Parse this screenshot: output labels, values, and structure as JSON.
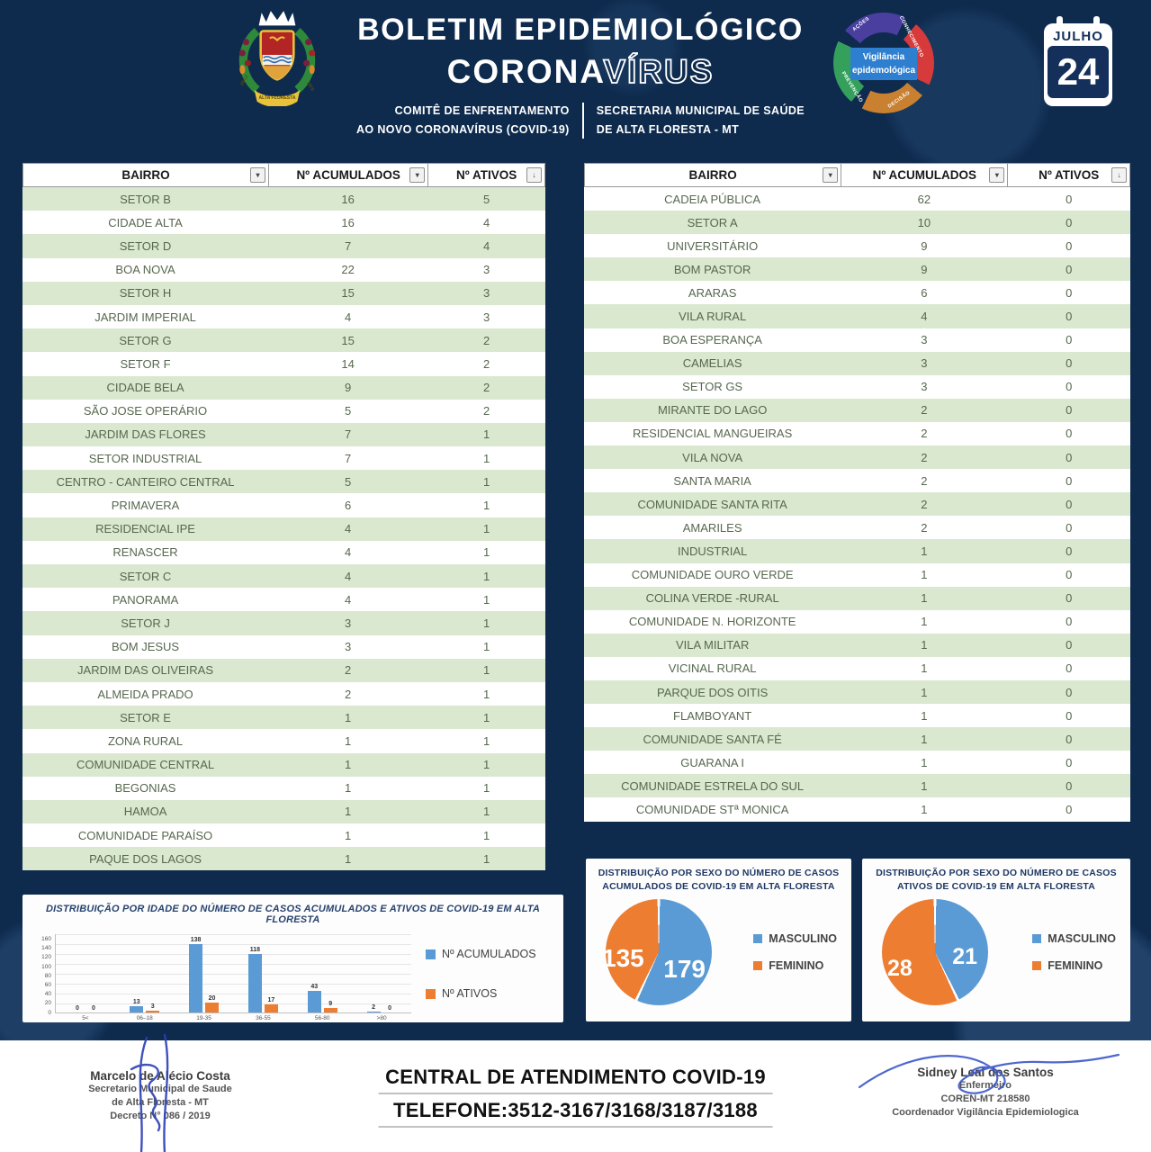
{
  "colors": {
    "background_navy": "#0e2b4e",
    "table_row_green": "#d9e8cf",
    "series_blue": "#5b9bd5",
    "series_orange": "#ed7d31"
  },
  "header": {
    "title_line1": "BOLETIM EPIDEMIOLÓGICO",
    "corona_solid": "CORONA",
    "corona_outline": "VÍRUS",
    "subtitle_left_line1": "COMITÊ DE ENFRENTAMENTO",
    "subtitle_left_line2": "AO NOVO CORONAVÍRUS (COVID-19)",
    "subtitle_right_line1": "SECRETARIA MUNICIPAL DE SAÚDE",
    "subtitle_right_line2": "DE ALTA FLORESTA - MT",
    "coat_of_arms": {
      "ribbon_left": "18-12",
      "ribbon_right": "1979",
      "banner": "ALTA FLORESTA"
    },
    "cycle_logo": {
      "center_line1": "Vigilância",
      "center_line2": "epidemológica",
      "labels": [
        "AÇÕES",
        "CONHECIMENTO",
        "DECISÃO",
        "PREVENÇÃO"
      ]
    },
    "calendar": {
      "month": "JULHO",
      "day": "24"
    }
  },
  "tables": [
    {
      "headers": [
        "BAIRRO",
        "Nº ACUMULADOS",
        "Nº ATIVOS"
      ],
      "first_row_shaded": true,
      "rows": [
        [
          "SETOR B",
          16,
          5
        ],
        [
          "CIDADE ALTA",
          16,
          4
        ],
        [
          "SETOR D",
          7,
          4
        ],
        [
          "BOA NOVA",
          22,
          3
        ],
        [
          "SETOR H",
          15,
          3
        ],
        [
          "JARDIM IMPERIAL",
          4,
          3
        ],
        [
          "SETOR G",
          15,
          2
        ],
        [
          "SETOR F",
          14,
          2
        ],
        [
          "CIDADE BELA",
          9,
          2
        ],
        [
          "SÃO JOSE OPERÁRIO",
          5,
          2
        ],
        [
          "JARDIM DAS FLORES",
          7,
          1
        ],
        [
          "SETOR INDUSTRIAL",
          7,
          1
        ],
        [
          "CENTRO - CANTEIRO CENTRAL",
          5,
          1
        ],
        [
          "PRIMAVERA",
          6,
          1
        ],
        [
          "RESIDENCIAL IPE",
          4,
          1
        ],
        [
          "RENASCER",
          4,
          1
        ],
        [
          "SETOR C",
          4,
          1
        ],
        [
          "PANORAMA",
          4,
          1
        ],
        [
          "SETOR J",
          3,
          1
        ],
        [
          "BOM JESUS",
          3,
          1
        ],
        [
          "JARDIM DAS OLIVEIRAS",
          2,
          1
        ],
        [
          "ALMEIDA PRADO",
          2,
          1
        ],
        [
          "SETOR E",
          1,
          1
        ],
        [
          "ZONA RURAL",
          1,
          1
        ],
        [
          "COMUNIDADE CENTRAL",
          1,
          1
        ],
        [
          "BEGONIAS",
          1,
          1
        ],
        [
          "HAMOA",
          1,
          1
        ],
        [
          "COMUNIDADE PARAÍSO",
          1,
          1
        ],
        [
          "PAQUE DOS LAGOS",
          1,
          1
        ]
      ]
    },
    {
      "headers": [
        "BAIRRO",
        "Nº ACUMULADOS",
        "Nº ATIVOS"
      ],
      "first_row_shaded": false,
      "rows": [
        [
          "CADEIA PÚBLICA",
          62,
          0
        ],
        [
          "SETOR A",
          10,
          0
        ],
        [
          "UNIVERSITÁRIO",
          9,
          0
        ],
        [
          "BOM PASTOR",
          9,
          0
        ],
        [
          "ARARAS",
          6,
          0
        ],
        [
          "VILA RURAL",
          4,
          0
        ],
        [
          "BOA ESPERANÇA",
          3,
          0
        ],
        [
          "CAMELIAS",
          3,
          0
        ],
        [
          "SETOR GS",
          3,
          0
        ],
        [
          "MIRANTE DO LAGO",
          2,
          0
        ],
        [
          "RESIDENCIAL MANGUEIRAS",
          2,
          0
        ],
        [
          "VILA NOVA",
          2,
          0
        ],
        [
          "SANTA MARIA",
          2,
          0
        ],
        [
          "COMUNIDADE SANTA RITA",
          2,
          0
        ],
        [
          "AMARILES",
          2,
          0
        ],
        [
          "INDUSTRIAL",
          1,
          0
        ],
        [
          "COMUNIDADE OURO VERDE",
          1,
          0
        ],
        [
          "COLINA VERDE -RURAL",
          1,
          0
        ],
        [
          "COMUNIDADE N. HORIZONTE",
          1,
          0
        ],
        [
          "VILA MILITAR",
          1,
          0
        ],
        [
          "VICINAL RURAL",
          1,
          0
        ],
        [
          "PARQUE DOS OITIS",
          1,
          0
        ],
        [
          "FLAMBOYANT",
          1,
          0
        ],
        [
          "COMUNIDADE SANTA FÉ",
          1,
          0
        ],
        [
          "GUARANA I",
          1,
          0
        ],
        [
          "COMUNIDADE ESTRELA DO SUL",
          1,
          0
        ],
        [
          "COMUNIDADE STª MONICA",
          1,
          0
        ]
      ]
    }
  ],
  "chart_data": [
    {
      "type": "bar",
      "title": "DISTRIBUIÇÃO POR IDADE DO NÚMERO DE CASOS ACUMULADOS E ATIVOS DE COVID-19 EM ALTA FLORESTA",
      "categories": [
        "5<",
        "06–18",
        "19-35",
        "36-55",
        "56-80",
        ">80"
      ],
      "series": [
        {
          "name": "Nº ACUMULADOS",
          "color": "#5b9bd5",
          "values": [
            0,
            13,
            138,
            118,
            43,
            2
          ]
        },
        {
          "name": "Nº ATIVOS",
          "color": "#ed7d31",
          "values": [
            0,
            3,
            20,
            17,
            9,
            0
          ]
        }
      ],
      "ylim": [
        0,
        160
      ],
      "yticks": [
        0,
        20,
        40,
        60,
        80,
        100,
        120,
        140,
        160
      ],
      "grid": true,
      "legend_position": "right"
    },
    {
      "type": "pie",
      "title": "DISTRIBUIÇÃO POR SEXO DO NÚMERO DE CASOS ACUMULADOS DE COVID-19 EM ALTA FLORESTA",
      "slices": [
        {
          "label": "MASCULINO",
          "value": 179,
          "color": "#5b9bd5"
        },
        {
          "label": "FEMININO",
          "value": 135,
          "color": "#ed7d31"
        }
      ],
      "legend_position": "right"
    },
    {
      "type": "pie",
      "title": "DISTRIBUIÇÃO POR SEXO DO NÚMERO DE CASOS ATIVOS DE COVID-19 EM ALTA FLORESTA",
      "slices": [
        {
          "label": "MASCULINO",
          "value": 21,
          "color": "#5b9bd5"
        },
        {
          "label": "FEMININO",
          "value": 28,
          "color": "#ed7d31"
        }
      ],
      "legend_position": "right"
    }
  ],
  "footer": {
    "left_signature": {
      "name": "Marcelo de Alécio Costa",
      "line2": "Secretario Municipal de Saude",
      "line3": "de Alta Floresta - MT",
      "line4": "Decreto N° 086 / 2019"
    },
    "center": {
      "line1": "CENTRAL DE ATENDIMENTO COVID-19",
      "line2": "TELEFONE:3512-3167/3168/3187/3188"
    },
    "right_signature": {
      "name": "Sidney Leal dos Santos",
      "line2": "Enfermeiro",
      "line3": "COREN-MT 218580",
      "line4": "Coordenador Vigilância Epidemiologica"
    }
  }
}
